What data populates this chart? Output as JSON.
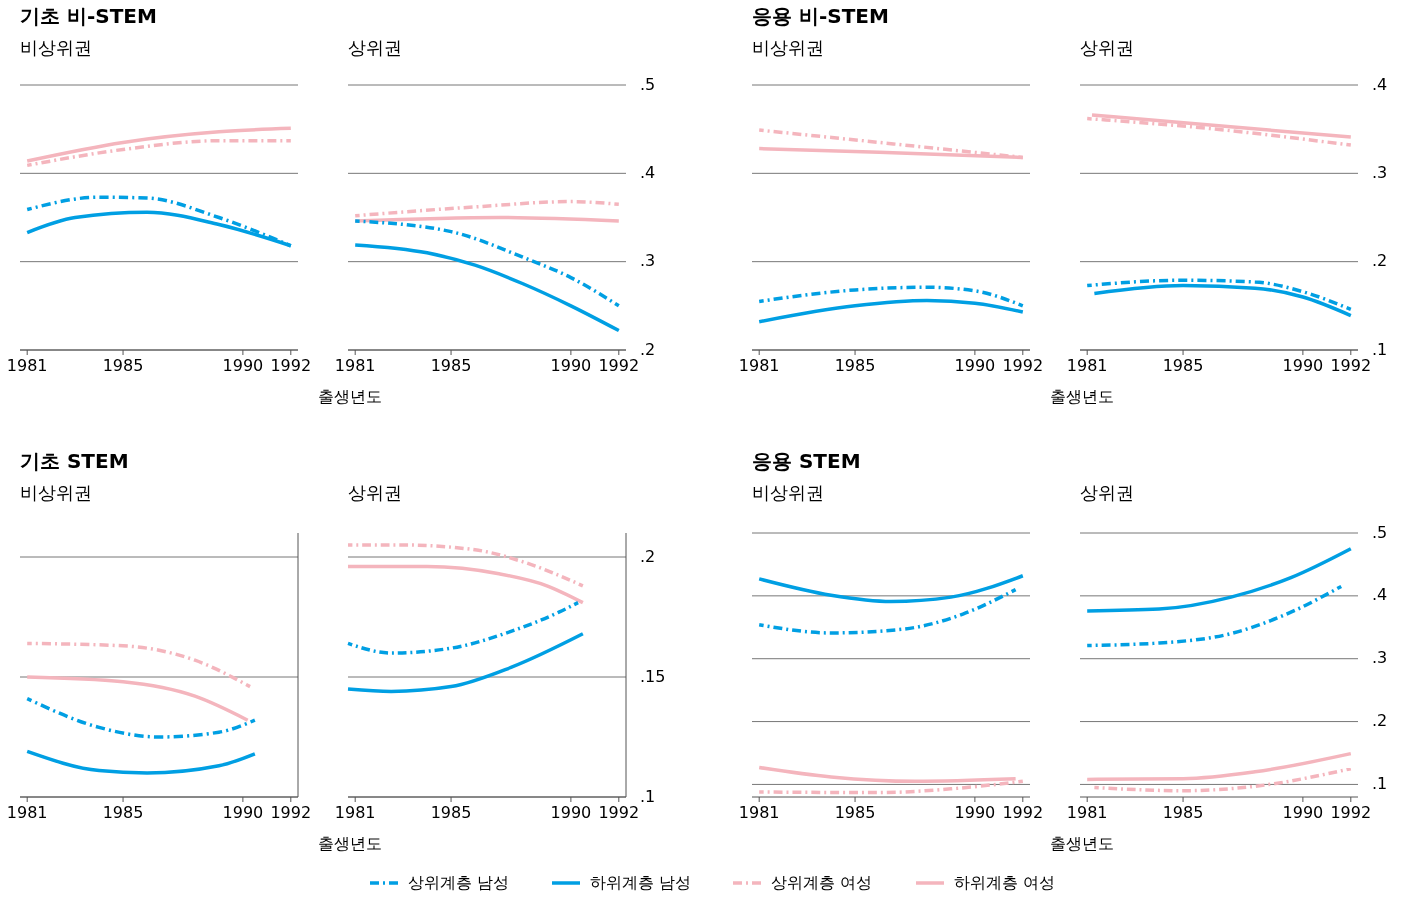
{
  "chart_data": [
    {
      "type": "line",
      "title": "기초 비-STEM",
      "subtitle": "비상위권",
      "xlim": [
        1980.7,
        1992.3
      ],
      "xticks": [
        1981,
        1985,
        1990,
        1992
      ],
      "ylim": [
        0.2,
        0.5
      ],
      "yticks": [
        0.2,
        0.3,
        0.4,
        0.5
      ],
      "grid": "y",
      "tick_labels": "x",
      "legend": "bottom",
      "series": [
        {
          "name": "상위계층 남성",
          "color": "#009fe3",
          "line_style": "dashed",
          "x": [
            1981,
            1984,
            1986,
            1989,
            1992
          ],
          "values": [
            0.359,
            0.373,
            0.372,
            0.35,
            0.318
          ]
        },
        {
          "name": "하위계층 남성",
          "color": "#009fe3",
          "line_style": "solid",
          "x": [
            1981,
            1983,
            1986,
            1989,
            1992
          ],
          "values": [
            0.333,
            0.35,
            0.356,
            0.342,
            0.318
          ]
        },
        {
          "name": "상위계층 여성",
          "color": "#f4b5bd",
          "line_style": "dashed",
          "x": [
            1981,
            1985,
            1989,
            1992
          ],
          "values": [
            0.409,
            0.427,
            0.437,
            0.437
          ]
        },
        {
          "name": "하위계층 여성",
          "color": "#f4b5bd",
          "line_style": "solid",
          "x": [
            1981,
            1985,
            1989,
            1992
          ],
          "values": [
            0.414,
            0.435,
            0.447,
            0.451
          ]
        }
      ]
    },
    {
      "type": "line",
      "subtitle": "상위권",
      "xlabel": "출생년도",
      "xlim": [
        1980.7,
        1992.3
      ],
      "xticks": [
        1981,
        1985,
        1990,
        1992
      ],
      "ylim": [
        0.2,
        0.5
      ],
      "yticks": [
        {
          "value": 0.2,
          "label": ".2"
        },
        {
          "value": 0.3,
          "label": ".3"
        },
        {
          "value": 0.4,
          "label": ".4"
        },
        {
          "value": 0.5,
          "label": ".5"
        }
      ],
      "grid": "y",
      "series": [
        {
          "color": "#009fe3",
          "line_style": "dashed",
          "x": [
            1981,
            1985,
            1988,
            1990,
            1992
          ],
          "values": [
            0.346,
            0.334,
            0.305,
            0.282,
            0.25
          ]
        },
        {
          "color": "#009fe3",
          "line_style": "solid",
          "x": [
            1981,
            1984,
            1986,
            1988,
            1990,
            1992
          ],
          "values": [
            0.319,
            0.31,
            0.296,
            0.275,
            0.25,
            0.222
          ]
        },
        {
          "color": "#f4b5bd",
          "line_style": "dashed",
          "x": [
            1981,
            1986,
            1990,
            1992
          ],
          "values": [
            0.352,
            0.362,
            0.368,
            0.365
          ]
        },
        {
          "color": "#f4b5bd",
          "line_style": "solid",
          "x": [
            1981,
            1987,
            1992
          ],
          "values": [
            0.346,
            0.35,
            0.346
          ]
        }
      ]
    },
    {
      "type": "line",
      "title": "응용 비-STEM",
      "subtitle": "비상위권",
      "xlim": [
        1980.7,
        1992.3
      ],
      "xticks": [
        1981,
        1985,
        1990,
        1992
      ],
      "ylim": [
        0.1,
        0.4
      ],
      "yticks": [
        0.1,
        0.2,
        0.3,
        0.4
      ],
      "grid": "y",
      "tick_labels": "x",
      "series": [
        {
          "color": "#009fe3",
          "line_style": "dashed",
          "x": [
            1981,
            1985,
            1988,
            1990,
            1992
          ],
          "values": [
            0.155,
            0.168,
            0.171,
            0.167,
            0.15
          ]
        },
        {
          "color": "#009fe3",
          "line_style": "solid",
          "x": [
            1981,
            1985,
            1988,
            1990,
            1992
          ],
          "values": [
            0.132,
            0.15,
            0.156,
            0.153,
            0.143
          ]
        },
        {
          "color": "#f4b5bd",
          "line_style": "dashed",
          "x": [
            1981,
            1986,
            1992
          ],
          "values": [
            0.349,
            0.335,
            0.318
          ]
        },
        {
          "color": "#f4b5bd",
          "line_style": "solid",
          "x": [
            1981,
            1986,
            1992
          ],
          "values": [
            0.328,
            0.324,
            0.318
          ]
        }
      ]
    },
    {
      "type": "line",
      "subtitle": "상위권",
      "xlabel": "출생년도",
      "xlim": [
        1980.7,
        1992.3
      ],
      "xticks": [
        1981,
        1985,
        1990,
        1992
      ],
      "ylim": [
        0.1,
        0.4
      ],
      "yticks": [
        {
          "value": 0.1,
          "label": ".1"
        },
        {
          "value": 0.2,
          "label": ".2"
        },
        {
          "value": 0.3,
          "label": ".3"
        },
        {
          "value": 0.4,
          "label": ".4"
        }
      ],
      "grid": "y",
      "series": [
        {
          "color": "#009fe3",
          "line_style": "dashed",
          "x": [
            1981,
            1985,
            1988,
            1990,
            1992
          ],
          "values": [
            0.173,
            0.179,
            0.177,
            0.166,
            0.146
          ]
        },
        {
          "color": "#009fe3",
          "line_style": "solid",
          "x": [
            1981.3,
            1985,
            1988,
            1990,
            1992
          ],
          "values": [
            0.164,
            0.173,
            0.17,
            0.16,
            0.139
          ]
        },
        {
          "color": "#f4b5bd",
          "line_style": "dashed",
          "x": [
            1981,
            1986,
            1992
          ],
          "values": [
            0.362,
            0.351,
            0.332
          ]
        },
        {
          "color": "#f4b5bd",
          "line_style": "solid",
          "x": [
            1981.2,
            1986,
            1992
          ],
          "values": [
            0.366,
            0.355,
            0.341
          ]
        }
      ]
    },
    {
      "type": "line",
      "title": "기초 STEM",
      "subtitle": "비상위권",
      "xlim": [
        1980.7,
        1992.3
      ],
      "xticks": [
        1981,
        1985,
        1990,
        1992
      ],
      "ylim": [
        0.1,
        0.21
      ],
      "yticks": [
        0.1,
        0.15,
        0.2
      ],
      "grid": "y",
      "tick_labels": "x",
      "series": [
        {
          "color": "#009fe3",
          "line_style": "dashed",
          "x": [
            1981,
            1984,
            1986.5,
            1989,
            1990.5
          ],
          "values": [
            0.141,
            0.129,
            0.125,
            0.127,
            0.132
          ]
        },
        {
          "color": "#009fe3",
          "line_style": "solid",
          "x": [
            1981,
            1984,
            1986,
            1989,
            1990.5
          ],
          "values": [
            0.119,
            0.111,
            0.11,
            0.113,
            0.118
          ]
        },
        {
          "color": "#f4b5bd",
          "line_style": "dashed",
          "x": [
            1981,
            1985,
            1988,
            1990.3
          ],
          "values": [
            0.164,
            0.163,
            0.157,
            0.146
          ]
        },
        {
          "color": "#f4b5bd",
          "line_style": "solid",
          "x": [
            1981,
            1985,
            1988,
            1990.2
          ],
          "values": [
            0.15,
            0.148,
            0.142,
            0.132
          ]
        }
      ]
    },
    {
      "type": "line",
      "subtitle": "상위권",
      "xlabel": "출생년도",
      "xlim": [
        1980.7,
        1992.3
      ],
      "xticks": [
        1981,
        1985,
        1990,
        1992
      ],
      "ylim": [
        0.1,
        0.21
      ],
      "yticks": [
        {
          "value": 0.1,
          "label": ".1"
        },
        {
          "value": 0.15,
          "label": ".15"
        },
        {
          "value": 0.2,
          "label": ".2"
        }
      ],
      "grid": "y",
      "series": [
        {
          "color": "#009fe3",
          "line_style": "dashed",
          "x": [
            1980.7,
            1982.5,
            1985,
            1987.5,
            1989.5,
            1990.3
          ],
          "values": [
            0.164,
            0.16,
            0.162,
            0.169,
            0.177,
            0.181
          ]
        },
        {
          "color": "#009fe3",
          "line_style": "solid",
          "x": [
            1980.7,
            1982.5,
            1985,
            1987.5,
            1990.5
          ],
          "values": [
            0.145,
            0.144,
            0.146,
            0.154,
            0.168
          ]
        },
        {
          "color": "#f4b5bd",
          "line_style": "dashed",
          "x": [
            1980.7,
            1983,
            1986,
            1988,
            1990.5
          ],
          "values": [
            0.205,
            0.205,
            0.203,
            0.198,
            0.188
          ]
        },
        {
          "color": "#f4b5bd",
          "line_style": "solid",
          "x": [
            1980.7,
            1984,
            1987,
            1989,
            1990.5
          ],
          "values": [
            0.196,
            0.196,
            0.193,
            0.188,
            0.181
          ]
        }
      ]
    },
    {
      "type": "line",
      "title": "응용 STEM",
      "subtitle": "비상위권",
      "xlim": [
        1980.7,
        1992.3
      ],
      "xticks": [
        1981,
        1985,
        1990,
        1992
      ],
      "ylim": [
        0.08,
        0.5
      ],
      "yticks": [
        0.1,
        0.2,
        0.3,
        0.4,
        0.5
      ],
      "grid": "y",
      "tick_labels": "x",
      "series": [
        {
          "color": "#009fe3",
          "line_style": "dashed",
          "x": [
            1981,
            1984,
            1987,
            1989.5,
            1991.7
          ],
          "values": [
            0.354,
            0.341,
            0.347,
            0.371,
            0.41
          ]
        },
        {
          "color": "#009fe3",
          "line_style": "solid",
          "x": [
            1981,
            1984,
            1986.5,
            1989,
            1992
          ],
          "values": [
            0.427,
            0.401,
            0.391,
            0.398,
            0.432
          ]
        },
        {
          "color": "#f4b5bd",
          "line_style": "dashed",
          "x": [
            1981,
            1986,
            1989,
            1992
          ],
          "values": [
            0.088,
            0.087,
            0.093,
            0.105
          ]
        },
        {
          "color": "#f4b5bd",
          "line_style": "solid",
          "x": [
            1981,
            1984,
            1987.5,
            1991.7
          ],
          "values": [
            0.127,
            0.112,
            0.105,
            0.109
          ]
        }
      ]
    },
    {
      "type": "line",
      "subtitle": "상위권",
      "xlabel": "출생년도",
      "xlim": [
        1980.7,
        1992.3
      ],
      "xticks": [
        1981,
        1985,
        1990,
        1992
      ],
      "ylim": [
        0.08,
        0.5
      ],
      "yticks": [
        {
          "value": 0.1,
          "label": ".1"
        },
        {
          "value": 0.2,
          "label": ".2"
        },
        {
          "value": 0.3,
          "label": ".3"
        },
        {
          "value": 0.4,
          "label": ".4"
        },
        {
          "value": 0.5,
          "label": ".5"
        }
      ],
      "grid": "y",
      "series": [
        {
          "color": "#009fe3",
          "line_style": "dashed",
          "x": [
            1981,
            1984,
            1987,
            1989.5,
            1991.6
          ],
          "values": [
            0.321,
            0.325,
            0.34,
            0.374,
            0.415
          ]
        },
        {
          "color": "#009fe3",
          "line_style": "solid",
          "x": [
            1981,
            1984,
            1987,
            1989.5,
            1992
          ],
          "values": [
            0.376,
            0.379,
            0.398,
            0.429,
            0.475
          ]
        },
        {
          "color": "#f4b5bd",
          "line_style": "dashed",
          "x": [
            1981.3,
            1985,
            1988,
            1992
          ],
          "values": [
            0.095,
            0.09,
            0.097,
            0.125
          ]
        },
        {
          "color": "#f4b5bd",
          "line_style": "solid",
          "x": [
            1981,
            1985,
            1988,
            1992
          ],
          "values": [
            0.108,
            0.109,
            0.12,
            0.149
          ]
        }
      ]
    }
  ]
}
